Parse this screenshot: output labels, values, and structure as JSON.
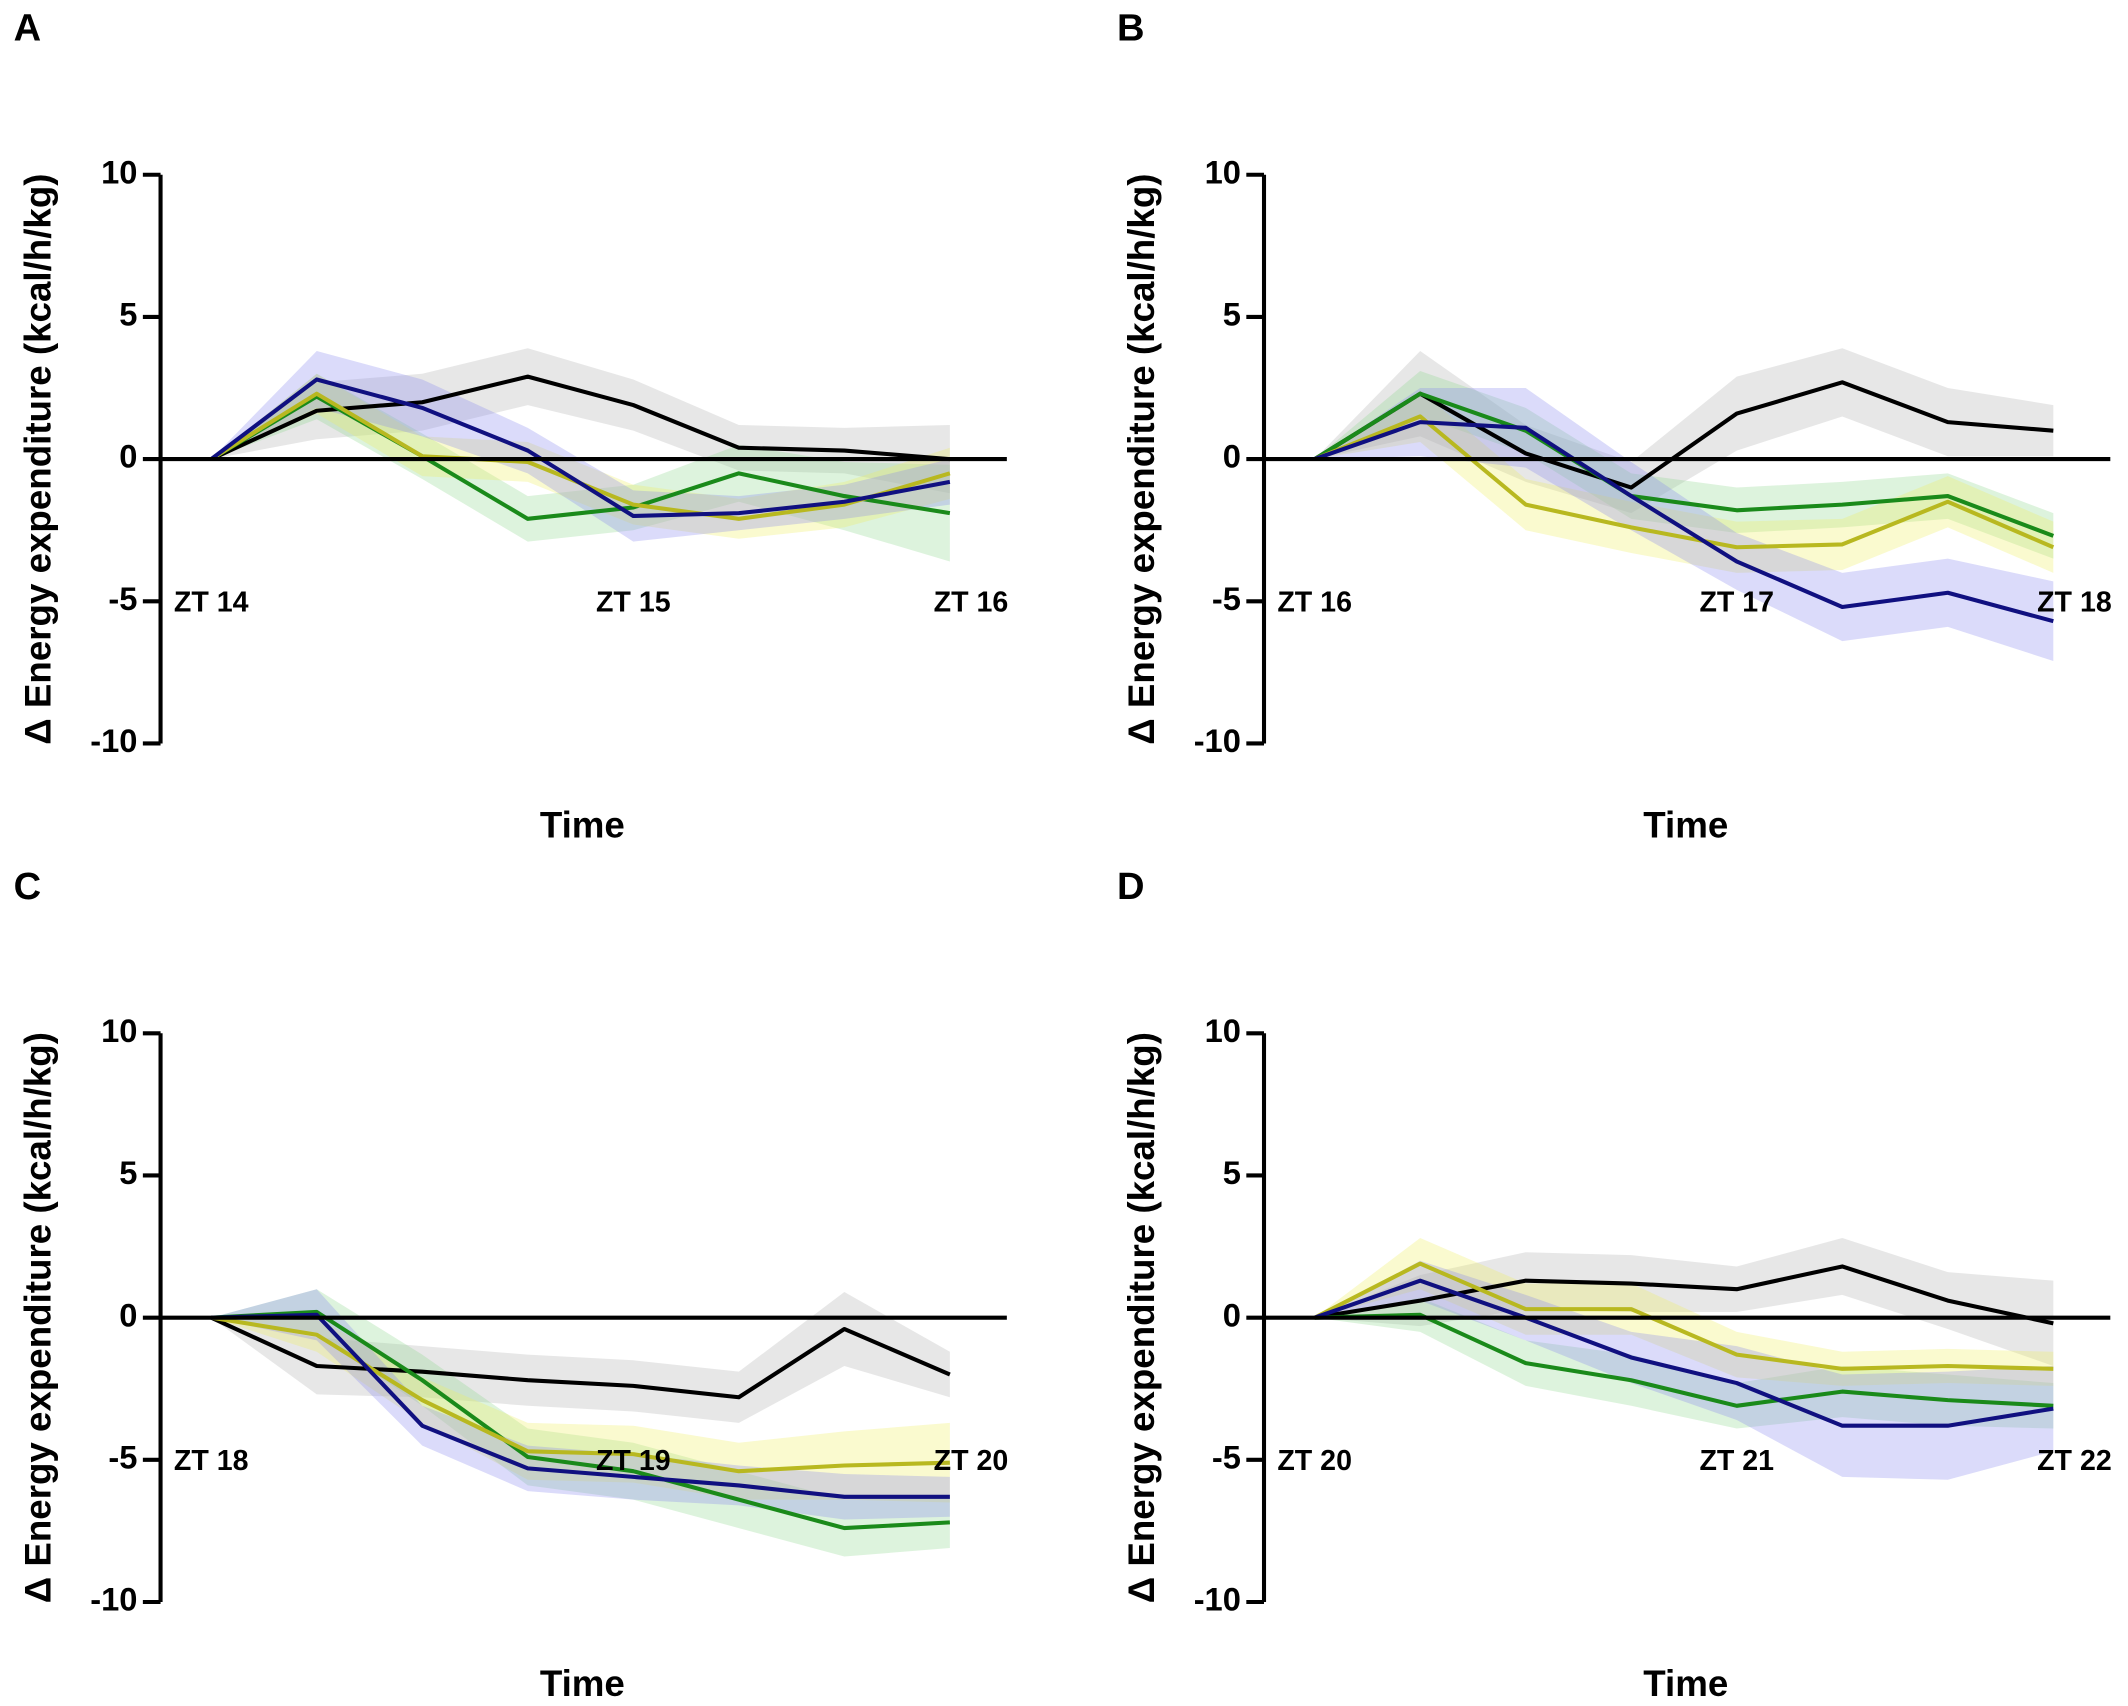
{
  "chart_data": [
    {
      "type": "line",
      "panel": "A",
      "ylabel": "Δ Energy expenditure (kcal/h/kg)",
      "xlabel": "Time",
      "x": [
        0,
        1,
        2,
        3,
        4,
        5,
        6,
        7
      ],
      "xlim": [
        -0.48,
        7.54
      ],
      "xticks": [
        {
          "value": 0,
          "label": "ZT 14"
        },
        {
          "value": 4,
          "label": "ZT 15"
        },
        {
          "value": 7.2,
          "label": "ZT 16"
        }
      ],
      "ylim": [
        -10,
        10
      ],
      "yticks": [
        -10,
        -5,
        0,
        5,
        10
      ],
      "series": [
        {
          "color": "#000000",
          "band_color": "#b0b0b0",
          "values": [
            0,
            1.7,
            2.0,
            2.9,
            1.9,
            0.4,
            0.3,
            0.0
          ],
          "errors": [
            0,
            1.0,
            1.0,
            1.0,
            0.9,
            0.8,
            0.8,
            1.2
          ]
        },
        {
          "color": "#1a8a1a",
          "band_color": "#8fd88f",
          "values": [
            0,
            2.2,
            0.1,
            -2.1,
            -1.7,
            -0.5,
            -1.3,
            -1.9
          ],
          "errors": [
            0,
            0.8,
            0.8,
            0.8,
            0.8,
            1.0,
            1.2,
            1.7
          ]
        },
        {
          "color": "#b8b820",
          "band_color": "#f0f060",
          "values": [
            0,
            2.3,
            0.1,
            -0.1,
            -1.6,
            -2.1,
            -1.6,
            -0.5
          ],
          "errors": [
            0,
            0.7,
            0.7,
            0.7,
            0.7,
            0.7,
            0.8,
            0.9
          ]
        },
        {
          "color": "#101080",
          "band_color": "#8888f0",
          "values": [
            0,
            2.8,
            1.8,
            0.3,
            -2.0,
            -1.9,
            -1.5,
            -0.8
          ],
          "errors": [
            0,
            1.0,
            1.0,
            0.8,
            0.9,
            0.6,
            0.6,
            0.8
          ]
        }
      ]
    },
    {
      "type": "line",
      "panel": "B",
      "ylabel": "Δ Energy expenditure (kcal/h/kg)",
      "xlabel": "Time",
      "x": [
        0,
        1,
        2,
        3,
        4,
        5,
        6,
        7
      ],
      "xlim": [
        -0.48,
        7.54
      ],
      "xticks": [
        {
          "value": 0,
          "label": "ZT 16"
        },
        {
          "value": 4,
          "label": "ZT 17"
        },
        {
          "value": 7.2,
          "label": "ZT 18"
        }
      ],
      "ylim": [
        -10,
        10
      ],
      "yticks": [
        -10,
        -5,
        0,
        5,
        10
      ],
      "series": [
        {
          "color": "#000000",
          "band_color": "#b0b0b0",
          "values": [
            0,
            2.3,
            0.2,
            -1.0,
            1.6,
            2.7,
            1.3,
            1.0
          ],
          "errors": [
            0,
            1.5,
            1.0,
            0.9,
            1.3,
            1.2,
            1.2,
            0.9
          ]
        },
        {
          "color": "#1a8a1a",
          "band_color": "#8fd88f",
          "values": [
            0,
            2.3,
            1.0,
            -1.3,
            -1.8,
            -1.6,
            -1.3,
            -2.7
          ],
          "errors": [
            0,
            0.8,
            0.8,
            0.8,
            0.8,
            0.8,
            0.8,
            0.8
          ]
        },
        {
          "color": "#b8b820",
          "band_color": "#f0f060",
          "values": [
            0,
            1.5,
            -1.6,
            -2.4,
            -3.1,
            -3.0,
            -1.5,
            -3.1
          ],
          "errors": [
            0,
            0.9,
            0.9,
            0.9,
            0.9,
            0.9,
            0.9,
            0.9
          ]
        },
        {
          "color": "#101080",
          "band_color": "#8888f0",
          "values": [
            0,
            1.3,
            1.1,
            -1.3,
            -3.6,
            -5.2,
            -4.7,
            -5.7
          ],
          "errors": [
            0,
            1.2,
            1.4,
            1.2,
            1.0,
            1.2,
            1.2,
            1.4
          ]
        }
      ]
    },
    {
      "type": "line",
      "panel": "C",
      "ylabel": "Δ Energy expenditure (kcal/h/kg)",
      "xlabel": "Time",
      "x": [
        0,
        1,
        2,
        3,
        4,
        5,
        6,
        7
      ],
      "xlim": [
        -0.48,
        7.54
      ],
      "xticks": [
        {
          "value": 0,
          "label": "ZT 18"
        },
        {
          "value": 4,
          "label": "ZT 19"
        },
        {
          "value": 7.2,
          "label": "ZT 20"
        }
      ],
      "ylim": [
        -10,
        10
      ],
      "yticks": [
        -10,
        -5,
        0,
        5,
        10
      ],
      "series": [
        {
          "color": "#000000",
          "band_color": "#b0b0b0",
          "values": [
            0,
            -1.7,
            -1.9,
            -2.2,
            -2.4,
            -2.8,
            -0.4,
            -2.0
          ],
          "errors": [
            0,
            1.0,
            0.9,
            0.9,
            0.9,
            0.9,
            1.3,
            0.8
          ]
        },
        {
          "color": "#1a8a1a",
          "band_color": "#8fd88f",
          "values": [
            0,
            0.2,
            -2.2,
            -4.9,
            -5.4,
            -6.4,
            -7.4,
            -7.2
          ],
          "errors": [
            0,
            0.8,
            0.9,
            1.0,
            1.0,
            1.0,
            1.0,
            0.9
          ]
        },
        {
          "color": "#b8b820",
          "band_color": "#f0f060",
          "values": [
            0,
            -0.6,
            -2.9,
            -4.7,
            -4.8,
            -5.4,
            -5.2,
            -5.1
          ],
          "errors": [
            0,
            0.6,
            0.8,
            1.0,
            1.0,
            1.0,
            1.2,
            1.4
          ]
        },
        {
          "color": "#101080",
          "band_color": "#8888f0",
          "values": [
            0,
            0.1,
            -3.8,
            -5.3,
            -5.6,
            -5.9,
            -6.3,
            -6.3
          ],
          "errors": [
            0,
            0.9,
            0.7,
            0.8,
            0.8,
            0.7,
            0.8,
            0.7
          ]
        }
      ]
    },
    {
      "type": "line",
      "panel": "D",
      "ylabel": "Δ Energy expenditure (kcal/h/kg)",
      "xlabel": "Time",
      "x": [
        0,
        1,
        2,
        3,
        4,
        5,
        6,
        7
      ],
      "xlim": [
        -0.48,
        7.54
      ],
      "xticks": [
        {
          "value": 0,
          "label": "ZT 20"
        },
        {
          "value": 4,
          "label": "ZT 21"
        },
        {
          "value": 7.2,
          "label": "ZT 22"
        }
      ],
      "ylim": [
        -10,
        10
      ],
      "yticks": [
        -10,
        -5,
        0,
        5,
        10
      ],
      "series": [
        {
          "color": "#000000",
          "band_color": "#b0b0b0",
          "values": [
            0,
            0.6,
            1.3,
            1.2,
            1.0,
            1.8,
            0.6,
            -0.2
          ],
          "errors": [
            0,
            0.9,
            1.0,
            1.0,
            0.8,
            1.0,
            1.0,
            1.5
          ]
        },
        {
          "color": "#1a8a1a",
          "band_color": "#8fd88f",
          "values": [
            0,
            0.1,
            -1.6,
            -2.2,
            -3.1,
            -2.6,
            -2.9,
            -3.1
          ],
          "errors": [
            0,
            0.6,
            0.8,
            0.9,
            0.8,
            0.9,
            0.9,
            0.8
          ]
        },
        {
          "color": "#b8b820",
          "band_color": "#f0f060",
          "values": [
            0,
            1.9,
            0.3,
            0.3,
            -1.3,
            -1.8,
            -1.7,
            -1.8
          ],
          "errors": [
            0,
            0.9,
            0.9,
            0.9,
            0.8,
            0.6,
            0.6,
            0.6
          ]
        },
        {
          "color": "#101080",
          "band_color": "#8888f0",
          "values": [
            0,
            1.3,
            0.0,
            -1.4,
            -2.3,
            -3.8,
            -3.8,
            -3.2
          ],
          "errors": [
            0,
            0.7,
            0.8,
            0.9,
            1.3,
            1.8,
            1.9,
            1.5
          ]
        }
      ]
    }
  ]
}
